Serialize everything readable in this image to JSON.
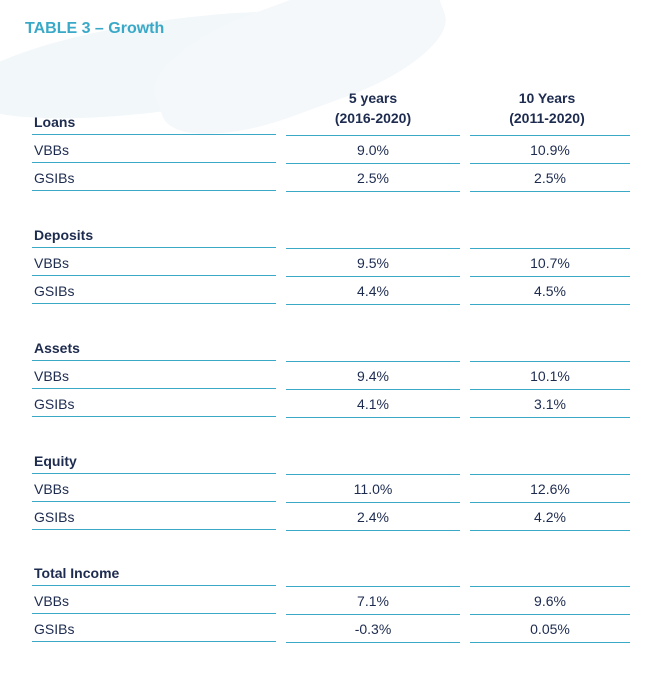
{
  "title": "TABLE 3 – Growth",
  "columns": [
    {
      "line1": "5 years",
      "line2": "(2016-2020)"
    },
    {
      "line1": "10 Years",
      "line2": "(2011-2020)"
    }
  ],
  "groups": [
    {
      "name": "Loans",
      "rows": [
        {
          "label": "VBBs",
          "v1": "9.0%",
          "v2": "10.9%"
        },
        {
          "label": "GSIBs",
          "v1": "2.5%",
          "v2": "2.5%"
        }
      ]
    },
    {
      "name": "Deposits",
      "rows": [
        {
          "label": "VBBs",
          "v1": "9.5%",
          "v2": "10.7%"
        },
        {
          "label": "GSIBs",
          "v1": "4.4%",
          "v2": "4.5%"
        }
      ]
    },
    {
      "name": "Assets",
      "rows": [
        {
          "label": "VBBs",
          "v1": "9.4%",
          "v2": "10.1%"
        },
        {
          "label": "GSIBs",
          "v1": "4.1%",
          "v2": "3.1%"
        }
      ]
    },
    {
      "name": "Equity",
      "rows": [
        {
          "label": "VBBs",
          "v1": "11.0%",
          "v2": "12.6%"
        },
        {
          "label": "GSIBs",
          "v1": "2.4%",
          "v2": "4.2%"
        }
      ]
    },
    {
      "name": "Total Income",
      "rows": [
        {
          "label": "VBBs",
          "v1": "7.1%",
          "v2": "9.6%"
        },
        {
          "label": "GSIBs",
          "v1": "-0.3%",
          "v2": "0.05%"
        }
      ]
    }
  ]
}
